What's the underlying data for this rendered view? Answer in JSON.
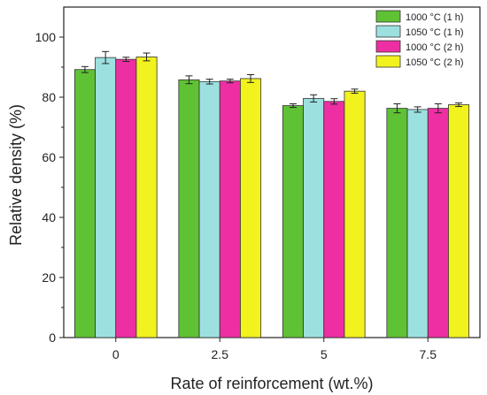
{
  "chart_data": {
    "type": "bar",
    "xlabel": "Rate of reinforcement (wt.%)",
    "ylabel": "Relative density (%)",
    "categories": [
      "0",
      "2.5",
      "5",
      "7.5"
    ],
    "ylim": [
      0,
      110
    ],
    "yticks": [
      0,
      20,
      40,
      60,
      80,
      100
    ],
    "grid": false,
    "legend_position": "top-right",
    "series": [
      {
        "name": "1000 °C (1 h)",
        "color": "#5ec234",
        "values": [
          89.2,
          85.8,
          77.2,
          76.3
        ],
        "errors": [
          1.0,
          1.3,
          0.6,
          1.5
        ]
      },
      {
        "name": "1050 °C (1 h)",
        "color": "#9de0e0",
        "values": [
          93.2,
          85.2,
          79.6,
          75.9
        ],
        "errors": [
          2.0,
          0.8,
          1.2,
          0.9
        ]
      },
      {
        "name": "1000 °C (2 h)",
        "color": "#ee2ea3",
        "values": [
          92.6,
          85.4,
          78.6,
          76.3
        ],
        "errors": [
          0.7,
          0.6,
          0.9,
          1.5
        ]
      },
      {
        "name": "1050 °C (2 h)",
        "color": "#f2f21e",
        "values": [
          93.4,
          86.2,
          82.0,
          77.5
        ],
        "errors": [
          1.3,
          1.3,
          0.7,
          0.6
        ]
      }
    ]
  }
}
